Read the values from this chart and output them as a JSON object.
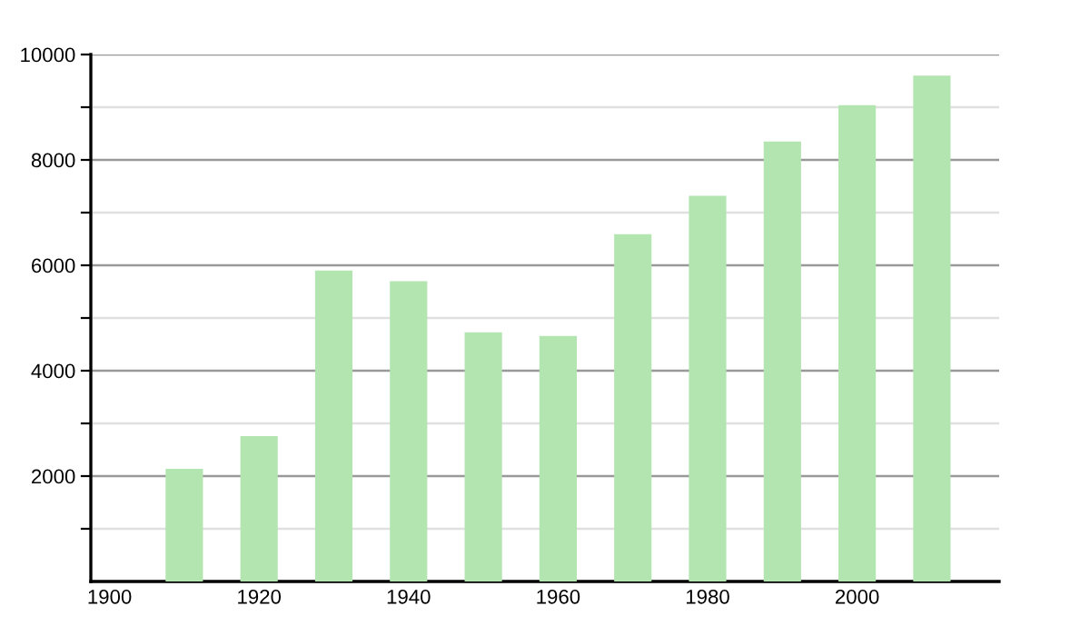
{
  "chart_data": {
    "type": "bar",
    "x": [
      1910,
      1920,
      1930,
      1940,
      1950,
      1960,
      1970,
      1980,
      1990,
      2000,
      2010
    ],
    "values": [
      2140,
      2760,
      5900,
      5700,
      4730,
      4660,
      6590,
      7320,
      8350,
      9040,
      9600
    ],
    "color": "#b3e5b0",
    "xlim": [
      1897.5,
      2019
    ],
    "xticks": [
      1900,
      1920,
      1940,
      1960,
      1980,
      2000
    ],
    "ylim": [
      0,
      10000
    ],
    "yticks": [
      {
        "value": 1000,
        "label": null
      },
      2000,
      {
        "value": 3000,
        "label": null
      },
      4000,
      {
        "value": 5000,
        "label": null
      },
      6000,
      {
        "value": 7000,
        "label": null
      },
      8000,
      {
        "value": 9000,
        "label": null
      },
      10000
    ],
    "grid": "y",
    "legend": false
  }
}
